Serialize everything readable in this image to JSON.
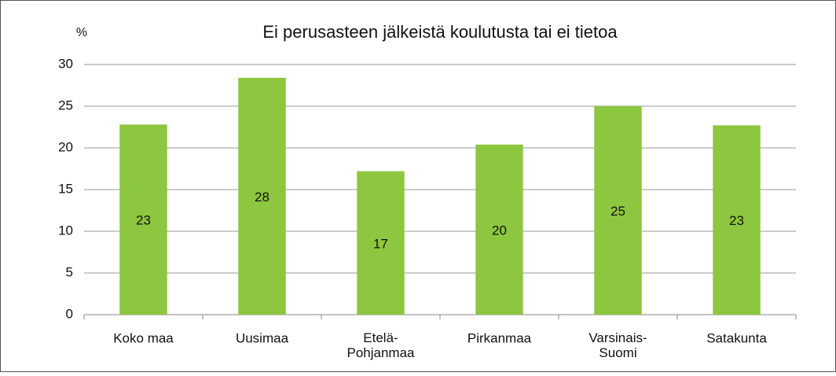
{
  "chart_data": {
    "type": "bar",
    "title": "Ei perusasteen jälkeistä koulutusta tai ei tietoa",
    "ylabel": "%",
    "categories": [
      "Koko maa",
      "Uusimaa",
      "Etelä-\nPohjanmaa",
      "Pirkanmaa",
      "Varsinais-\nSuomi",
      "Satakunta"
    ],
    "values": [
      22.8,
      28.4,
      17.2,
      20.4,
      25.0,
      22.7
    ],
    "value_labels": [
      "23",
      "28",
      "17",
      "20",
      "25",
      "23"
    ],
    "color": "#8dc63f",
    "ylim": [
      0,
      30
    ],
    "yticks": [
      0,
      5,
      10,
      15,
      20,
      25,
      30
    ],
    "grid": true
  }
}
